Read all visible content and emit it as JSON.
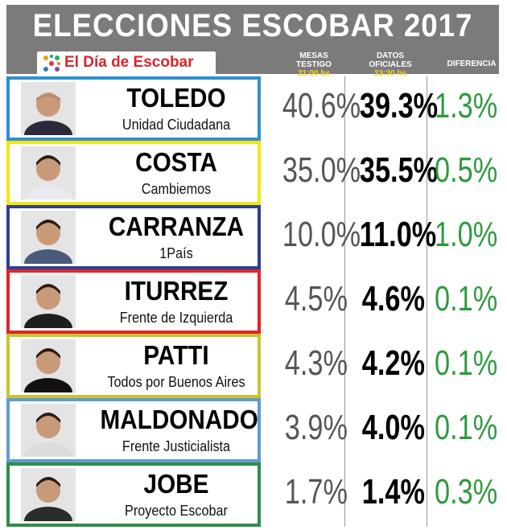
{
  "title": "ELECCIONES ESCOBAR 2017",
  "logo_text": "El Día de Escobar",
  "columns": {
    "mesas": {
      "line1": "MESAS",
      "line2": "TESTIGO",
      "time": "21:00 hs"
    },
    "datos": {
      "line1": "DATOS",
      "line2": "OFICIALES",
      "time": "23:30 hs"
    },
    "diferencia": "DIFERENCIA"
  },
  "colors": {
    "header_bg": "#7b7b7b",
    "time": "#f6d21a",
    "diff": "#2e9a3f"
  },
  "candidates": [
    {
      "name": "TOLEDO",
      "party": "Unidad Ciudadana",
      "mesas": "40.6%",
      "datos": "39.3%",
      "diferencia": "1.3%",
      "border": "#2f8fd0"
    },
    {
      "name": "COSTA",
      "party": "Cambiemos",
      "mesas": "35.0%",
      "datos": "35.5%",
      "diferencia": "0.5%",
      "border": "#f2e60f"
    },
    {
      "name": "CARRANZA",
      "party": "1País",
      "mesas": "10.0%",
      "datos": "11.0%",
      "diferencia": "1.0%",
      "border": "#2f3f8f"
    },
    {
      "name": "ITURREZ",
      "party": "Frente de Izquierda",
      "mesas": "4.5%",
      "datos": "4.6%",
      "diferencia": "0.1%",
      "border": "#e0262a"
    },
    {
      "name": "PATTI",
      "party": "Todos por Buenos Aires",
      "mesas": "4.3%",
      "datos": "4.2%",
      "diferencia": "0.1%",
      "border": "#c9c52f"
    },
    {
      "name": "MALDONADO",
      "party": "Frente Justicialista",
      "mesas": "3.9%",
      "datos": "4.0%",
      "diferencia": "0.1%",
      "border": "#5f9ccf"
    },
    {
      "name": "JOBE",
      "party": "Proyecto Escobar",
      "mesas": "1.7%",
      "datos": "1.4%",
      "diferencia": "0.3%",
      "border": "#2f8f4a"
    }
  ]
}
